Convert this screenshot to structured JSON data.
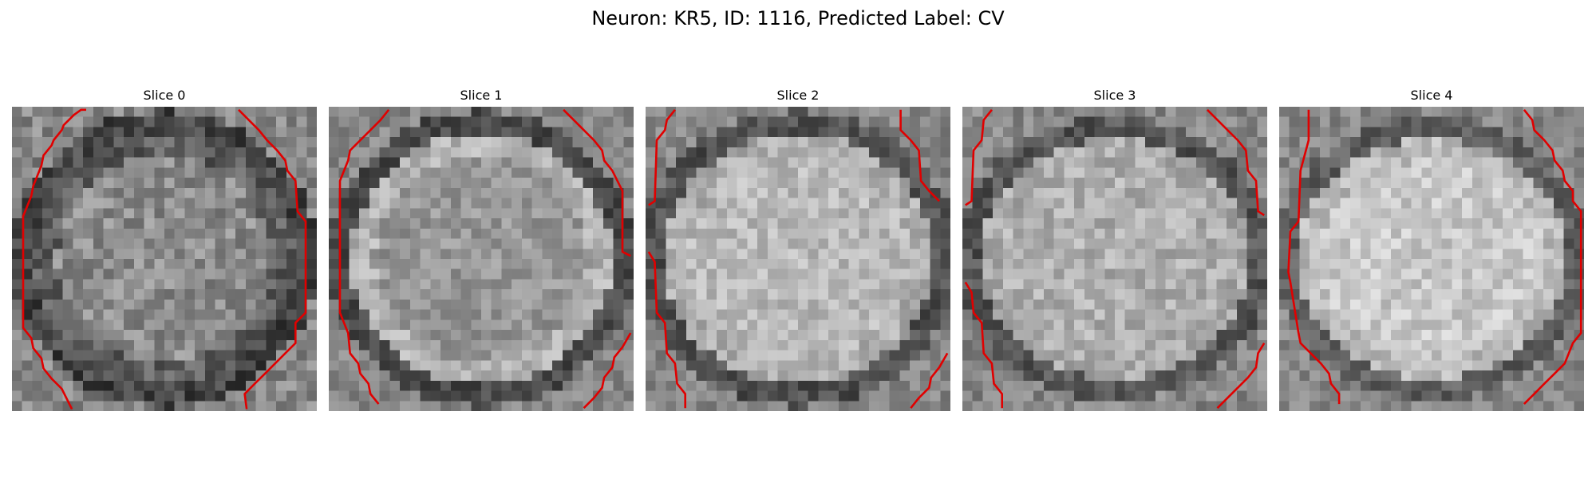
{
  "figure": {
    "title": "Neuron: KR5, ID: 1116, Predicted Label: CV",
    "contour_color": "#e00000",
    "colormap": "gray",
    "slices": [
      {
        "title": "Slice 0"
      },
      {
        "title": "Slice 1"
      },
      {
        "title": "Slice 2"
      },
      {
        "title": "Slice 3"
      },
      {
        "title": "Slice 4"
      }
    ]
  }
}
